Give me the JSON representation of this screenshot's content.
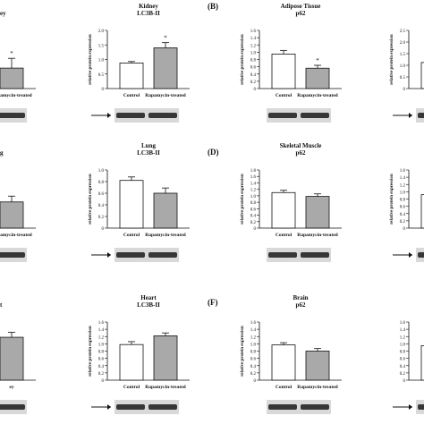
{
  "figure": {
    "panel_letters": [
      "(B)",
      "(D)",
      "(F)"
    ]
  },
  "chart_data": [
    {
      "type": "bar",
      "row": 0,
      "col": 0,
      "title": "",
      "subtitle": "ey",
      "categories": [
        "",
        "Rapamycin-treated"
      ],
      "values": [
        null,
        0.88
      ],
      "errors": [
        null,
        0.42
      ],
      "significance": [
        null,
        "*"
      ],
      "ylim": [
        0,
        2.5
      ],
      "yticks": [],
      "ylabel": "",
      "arrow": false
    },
    {
      "type": "bar",
      "row": 0,
      "col": 1,
      "title": "Kidney",
      "subtitle": "LC3B-II",
      "categories": [
        "Control",
        "Rapamycin-treated"
      ],
      "values": [
        0.88,
        1.4
      ],
      "errors": [
        0.05,
        0.18
      ],
      "significance": [
        null,
        "*"
      ],
      "ylim": [
        0,
        2.0
      ],
      "yticks": [
        "0",
        "0.5",
        "1.0",
        "1.5",
        "2.0"
      ],
      "ylabel": "relative protein expression",
      "arrow": true
    },
    {
      "type": "bar",
      "row": 0,
      "col": 2,
      "title": "Adipose Tissue",
      "subtitle": "p62",
      "categories": [
        "Control",
        "Rapamycin-treated"
      ],
      "values": [
        0.95,
        0.56
      ],
      "errors": [
        0.1,
        0.08
      ],
      "significance": [
        null,
        "*"
      ],
      "ylim": [
        0,
        1.6
      ],
      "yticks": [
        "0",
        "0.2",
        "0.4",
        "0.6",
        "0.8",
        "1.0",
        "1.2",
        "1.4",
        "1.6"
      ],
      "ylabel": "relative protein expression",
      "arrow": false
    },
    {
      "type": "bar",
      "row": 0,
      "col": 3,
      "title": "",
      "subtitle": "",
      "categories": [
        "Contr",
        ""
      ],
      "values": [
        1.12,
        null
      ],
      "errors": [
        0.1,
        null
      ],
      "significance": [
        null,
        null
      ],
      "ylim": [
        0,
        2.5
      ],
      "yticks": [
        "0",
        "0.5",
        "1.0",
        "1.5",
        "2.0",
        "2.5"
      ],
      "ylabel": "relative protein expression",
      "arrow": true
    },
    {
      "type": "bar",
      "row": 1,
      "col": 0,
      "title": "",
      "subtitle": "g",
      "categories": [
        "",
        "Rapamycin-treated"
      ],
      "values": [
        null,
        0.45
      ],
      "errors": [
        null,
        0.1
      ],
      "significance": [
        null,
        null
      ],
      "ylim": [
        0,
        1.0
      ],
      "yticks": [],
      "ylabel": "",
      "arrow": false
    },
    {
      "type": "bar",
      "row": 1,
      "col": 1,
      "title": "Lung",
      "subtitle": "LC3B-II",
      "categories": [
        "Control",
        "Rapamycin-treated"
      ],
      "values": [
        0.82,
        0.6
      ],
      "errors": [
        0.06,
        0.09
      ],
      "significance": [
        null,
        null
      ],
      "ylim": [
        0,
        1.0
      ],
      "yticks": [
        "0",
        "0.2",
        "0.4",
        "0.6",
        "0.8",
        "1.0"
      ],
      "ylabel": "relative protein expression",
      "arrow": true
    },
    {
      "type": "bar",
      "row": 1,
      "col": 2,
      "title": "Skeletal Muscle",
      "subtitle": "p62",
      "categories": [
        "Control",
        "Rapamycin-treated"
      ],
      "values": [
        1.1,
        0.98
      ],
      "errors": [
        0.07,
        0.08
      ],
      "significance": [
        null,
        null
      ],
      "ylim": [
        0,
        1.8
      ],
      "yticks": [
        "0",
        "0.2",
        "0.4",
        "0.6",
        "0.8",
        "1.0",
        "1.2",
        "1.4",
        "1.6",
        "1.8"
      ],
      "ylabel": "relative protein expression",
      "arrow": false
    },
    {
      "type": "bar",
      "row": 1,
      "col": 3,
      "title": "",
      "subtitle": "",
      "categories": [
        "Contr",
        ""
      ],
      "values": [
        0.92,
        null
      ],
      "errors": [
        0.06,
        null
      ],
      "significance": [
        null,
        null
      ],
      "ylim": [
        0,
        1.6
      ],
      "yticks": [
        "0",
        "0.2",
        "0.4",
        "0.6",
        "0.8",
        "1.0",
        "1.2",
        "1.4",
        "1.6"
      ],
      "ylabel": "relative protein expression",
      "arrow": true
    },
    {
      "type": "bar",
      "row": 2,
      "col": 0,
      "title": "",
      "subtitle": "t",
      "categories": [
        "",
        "ey"
      ],
      "values": [
        null,
        1.18
      ],
      "errors": [
        null,
        0.14
      ],
      "significance": [
        null,
        null
      ],
      "ylim": [
        0,
        1.6
      ],
      "yticks": [],
      "ylabel": "",
      "arrow": false
    },
    {
      "type": "bar",
      "row": 2,
      "col": 1,
      "title": "Heart",
      "subtitle": "LC3B-II",
      "categories": [
        "Control",
        "Rapamycin-treated"
      ],
      "values": [
        0.98,
        1.22
      ],
      "errors": [
        0.08,
        0.08
      ],
      "significance": [
        null,
        null
      ],
      "ylim": [
        0,
        1.6
      ],
      "yticks": [
        "0",
        "0.2",
        "0.4",
        "0.6",
        "0.8",
        "1.0",
        "1.2",
        "1.4",
        "1.6"
      ],
      "ylabel": "relative protein expression",
      "arrow": true
    },
    {
      "type": "bar",
      "row": 2,
      "col": 2,
      "title": "Brain",
      "subtitle": "p62",
      "categories": [
        "Control",
        "Rapamycin-treated"
      ],
      "values": [
        0.97,
        0.8
      ],
      "errors": [
        0.06,
        0.07
      ],
      "significance": [
        null,
        null
      ],
      "ylim": [
        0,
        1.6
      ],
      "yticks": [
        "0",
        "0.2",
        "0.4",
        "0.6",
        "0.8",
        "1.0",
        "1.2",
        "1.4",
        "1.6"
      ],
      "ylabel": "relative protein expression",
      "arrow": false
    },
    {
      "type": "bar",
      "row": 2,
      "col": 3,
      "title": "",
      "subtitle": "",
      "categories": [
        "",
        ""
      ],
      "values": [
        0.95,
        null
      ],
      "errors": [
        0.06,
        null
      ],
      "significance": [
        null,
        null
      ],
      "ylim": [
        0,
        1.6
      ],
      "yticks": [
        "0",
        "0.2",
        "0.4",
        "0.6",
        "0.8",
        "1.0",
        "1.2",
        "1.4",
        "1.6"
      ],
      "ylabel": "",
      "arrow": true
    }
  ],
  "colors": {
    "control_bar": "#ffffff",
    "treated_bar": "#a9a9a9",
    "stroke": "#111111",
    "blot_band": "#1a1a1a",
    "blot_bg": "#d9d9d9"
  }
}
